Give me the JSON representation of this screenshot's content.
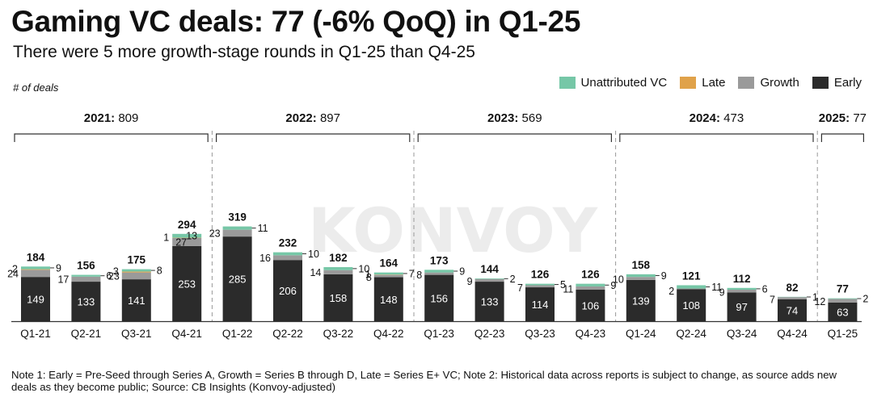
{
  "title": "Gaming VC deals: 77 (-6% QoQ) in Q1-25",
  "subtitle": "There were 5 more growth-stage rounds in Q1-25 than Q4-25",
  "y_axis_label": "# of deals",
  "note": "Note 1: Early = Pre-Seed through Series A, Growth = Series B through D, Late = Series E+ VC; Note 2: Historical data across reports is subject to change, as source adds new deals as they become public; Source: CB Insights (Konvoy-adjusted)",
  "watermark": "KONVOY",
  "colors": {
    "early": "#2b2b2b",
    "growth": "#9a9a9a",
    "late": "#e0a24a",
    "unattributed": "#76c7a7"
  },
  "legend": [
    {
      "key": "unattributed",
      "label": "Unattributed VC",
      "color": "#76c7a7"
    },
    {
      "key": "late",
      "label": "Late",
      "color": "#e0a24a"
    },
    {
      "key": "growth",
      "label": "Growth",
      "color": "#9a9a9a"
    },
    {
      "key": "early",
      "label": "Early",
      "color": "#2b2b2b"
    }
  ],
  "chart_data": {
    "type": "bar",
    "stacked": true,
    "title": "Gaming VC deals: 77 (-6% QoQ) in Q1-25",
    "ylabel": "# of deals",
    "categories": [
      "Q1-21",
      "Q2-21",
      "Q3-21",
      "Q4-21",
      "Q1-22",
      "Q2-22",
      "Q3-22",
      "Q4-22",
      "Q1-23",
      "Q2-23",
      "Q3-23",
      "Q4-23",
      "Q1-24",
      "Q2-24",
      "Q3-24",
      "Q4-24",
      "Q1-25"
    ],
    "series": [
      {
        "name": "Early",
        "key": "early",
        "values": [
          149,
          133,
          141,
          253,
          285,
          206,
          158,
          148,
          156,
          133,
          114,
          106,
          139,
          108,
          97,
          74,
          63
        ]
      },
      {
        "name": "Growth",
        "key": "growth",
        "values": [
          24,
          17,
          23,
          27,
          23,
          16,
          14,
          8,
          8,
          9,
          7,
          11,
          10,
          2,
          9,
          7,
          12
        ]
      },
      {
        "name": "Late",
        "key": "late",
        "values": [
          2,
          0,
          3,
          1,
          0,
          0,
          0,
          1,
          0,
          0,
          0,
          0,
          0,
          0,
          0,
          0,
          0
        ]
      },
      {
        "name": "Unattributed VC",
        "key": "unattributed",
        "values": [
          9,
          6,
          8,
          13,
          11,
          10,
          10,
          7,
          9,
          2,
          5,
          9,
          9,
          11,
          6,
          1,
          2
        ]
      }
    ],
    "totals": [
      184,
      156,
      175,
      294,
      319,
      232,
      182,
      164,
      173,
      144,
      126,
      126,
      158,
      121,
      112,
      82,
      77
    ],
    "ylim": [
      0,
      330
    ],
    "years": [
      {
        "label": "2021:",
        "total": "809",
        "start": 0,
        "end": 3
      },
      {
        "label": "2022:",
        "total": "897",
        "start": 4,
        "end": 7
      },
      {
        "label": "2023:",
        "total": "569",
        "start": 8,
        "end": 11
      },
      {
        "label": "2024:",
        "total": "473",
        "start": 12,
        "end": 15
      },
      {
        "label": "2025:",
        "total": "77",
        "start": 16,
        "end": 16
      }
    ]
  }
}
